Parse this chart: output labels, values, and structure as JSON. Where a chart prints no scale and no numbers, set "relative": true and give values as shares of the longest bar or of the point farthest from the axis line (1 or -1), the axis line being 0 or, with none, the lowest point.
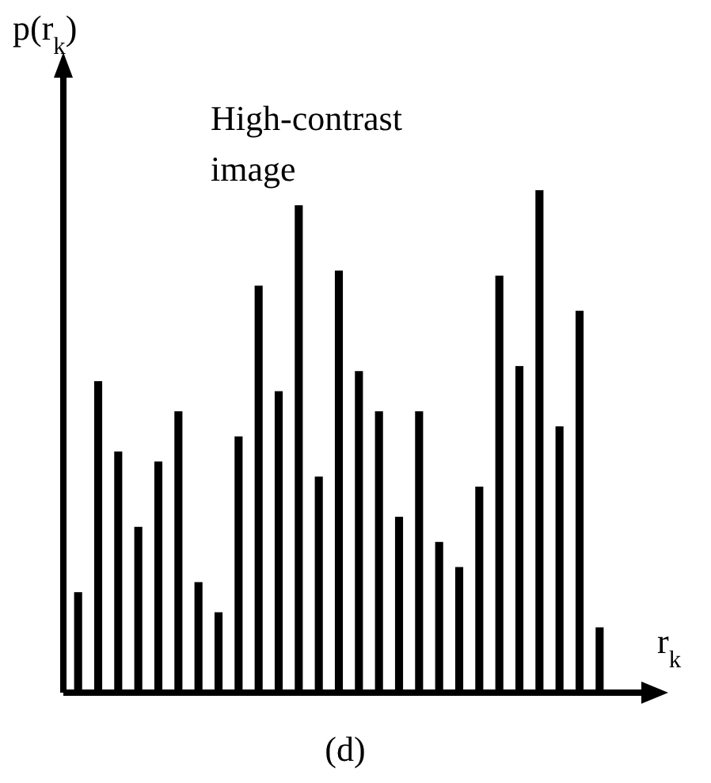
{
  "chart_data": {
    "type": "bar",
    "relative": true,
    "ylabel": "p(r$_{k}$)",
    "xlabel": "r$_{k}$",
    "annotations": [
      "High-contrast image",
      "(d)"
    ],
    "color": "#000000",
    "categories": [
      null,
      null,
      null,
      null,
      null,
      null,
      null,
      null,
      null,
      null,
      null,
      null,
      null,
      null,
      null,
      null,
      null,
      null,
      null,
      null,
      null,
      null,
      null,
      null,
      null,
      null,
      null
    ],
    "values": [
      0.2,
      0.62,
      0.48,
      0.33,
      0.46,
      0.56,
      0.22,
      0.16,
      0.51,
      0.81,
      0.6,
      0.97,
      0.43,
      0.84,
      0.64,
      0.56,
      0.35,
      0.56,
      0.3,
      0.25,
      0.41,
      0.83,
      0.65,
      1,
      0.53,
      0.76,
      0.13
    ]
  }
}
